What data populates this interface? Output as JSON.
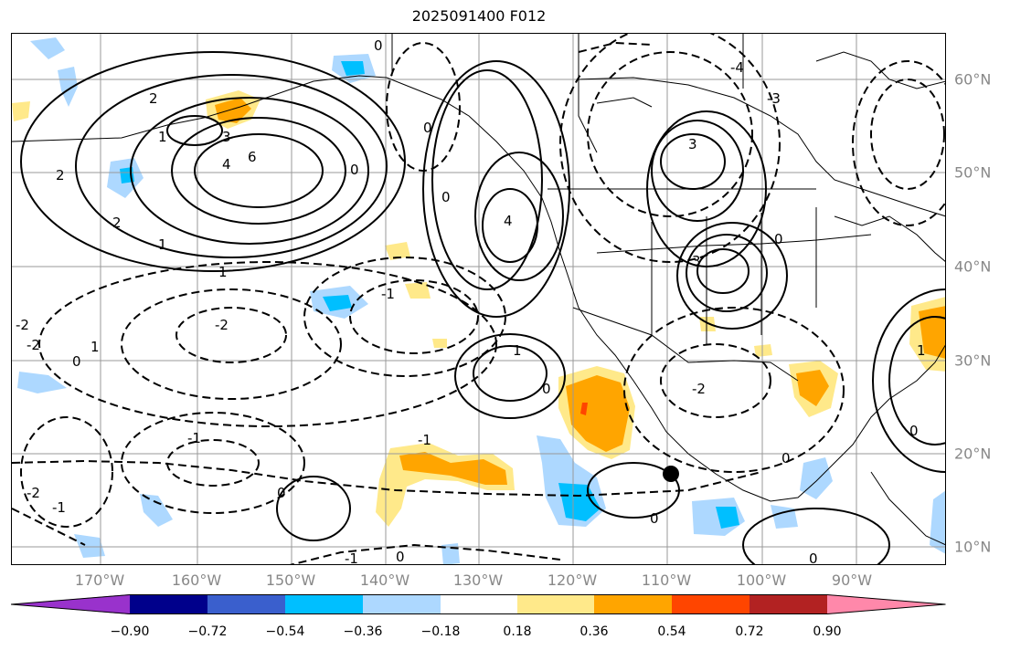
{
  "title": "2025091400 F012",
  "lon_labels": [
    "170°W",
    "160°W",
    "150°W",
    "140°W",
    "130°W",
    "120°W",
    "110°W",
    "100°W",
    "90°W"
  ],
  "lat_labels": [
    "60°N",
    "50°N",
    "40°N",
    "30°N",
    "20°N",
    "10°N"
  ],
  "colorbar": {
    "ticks": [
      "−0.90",
      "−0.72",
      "−0.54",
      "−0.36",
      "−0.18",
      "0.18",
      "0.36",
      "0.54",
      "0.72",
      "0.90"
    ],
    "colors": [
      "#9932cc",
      "#00008b",
      "#3a5fcd",
      "#00bfff",
      "#add8ff",
      "#ffffff",
      "#ffe98a",
      "#ffa500",
      "#ff4500",
      "#b22222",
      "#ff88aa"
    ]
  },
  "contour_labels": [
    "0",
    "1",
    "2",
    "3",
    "4",
    "6",
    "-1",
    "-2",
    "-3",
    "-4"
  ]
}
